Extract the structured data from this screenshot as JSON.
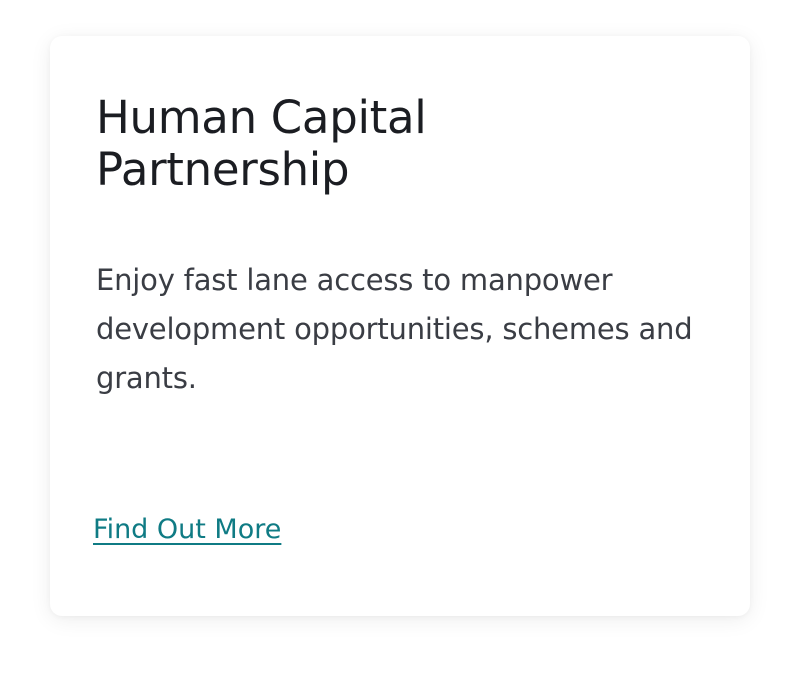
{
  "card": {
    "title": "Human Capital Partnership",
    "description": "Enjoy fast lane access to manpower development opportunities, schemes and grants.",
    "link_label": "Find Out More"
  },
  "colors": {
    "title": "#1b1d22",
    "text": "#3a3d44",
    "link": "#0f7b84",
    "background": "#ffffff"
  }
}
